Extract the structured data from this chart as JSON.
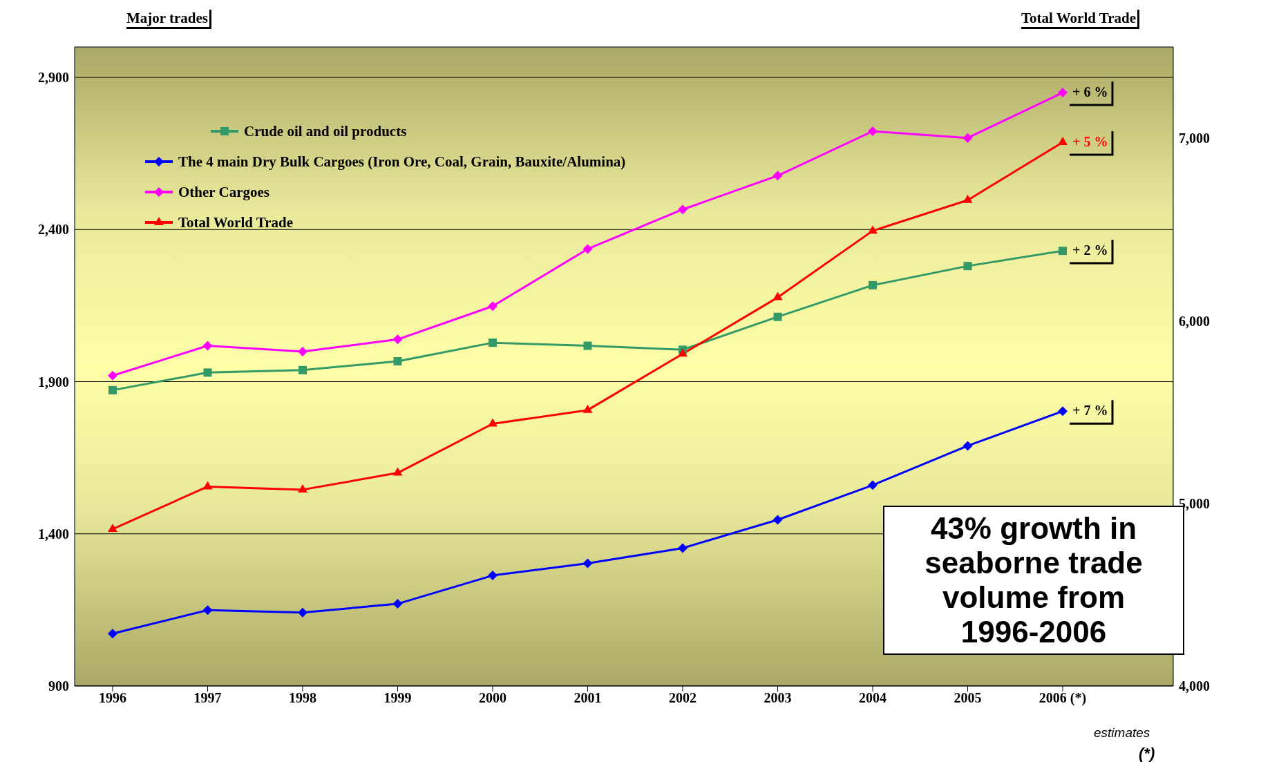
{
  "chart_data": {
    "type": "line",
    "categories": [
      "1996",
      "1997",
      "1998",
      "1999",
      "2000",
      "2001",
      "2002",
      "2003",
      "2004",
      "2005",
      "2006 (*)"
    ],
    "series": [
      {
        "name": "Crude oil and oil products",
        "color": "#339966",
        "marker": "square",
        "values": [
          1872,
          1930,
          1938,
          1967,
          2028,
          2018,
          2005,
          2113,
          2217,
          2280,
          2330
        ]
      },
      {
        "name": "The 4 main Dry Bulk Cargoes (Iron Ore, Coal, Grain, Bauxite/Alumina)",
        "color": "#0000ff",
        "marker": "diamond",
        "values": [
          1072,
          1149,
          1141,
          1170,
          1263,
          1303,
          1353,
          1446,
          1560,
          1689,
          1803
        ]
      },
      {
        "name": "Other Cargoes",
        "color": "#ff00ff",
        "marker": "diamond",
        "values": [
          1920,
          2018,
          1999,
          2039,
          2148,
          2336,
          2466,
          2577,
          2723,
          2701,
          2850
        ]
      },
      {
        "name": "Total World Trade",
        "color": "#ff0000",
        "marker": "triangle",
        "axis": "y2",
        "values": [
          4859,
          5092,
          5075,
          5167,
          5436,
          5511,
          5819,
          6128,
          6493,
          6661,
          6978
        ]
      }
    ],
    "ylim": [
      900,
      3000
    ],
    "yticks": [
      {
        "value": 900,
        "label": "900"
      },
      {
        "value": 1400,
        "label": "1,400"
      },
      {
        "value": 1900,
        "label": "1,900"
      },
      {
        "value": 2400,
        "label": "2,400"
      },
      {
        "value": 2900,
        "label": "2,900"
      }
    ],
    "y2lim": [
      4000,
      7500
    ],
    "y2ticks": [
      {
        "value": 4000,
        "label": "4,000"
      },
      {
        "value": 5000,
        "label": "5,000"
      },
      {
        "value": 6000,
        "label": "6,000"
      },
      {
        "value": 7000,
        "label": "7,000"
      }
    ],
    "grid": "y",
    "legend": "top left",
    "annotations": [
      "43% growth in seaborne trade volume from 1996-2006",
      "estimates",
      "(*)",
      "Major trades",
      "Total World Trade",
      {
        "text": "+ 6 %",
        "x": "2006 (*)",
        "y": 2850
      },
      {
        "text": "+ 2 %",
        "x": "2006 (*)",
        "y": 2330
      },
      {
        "text": "+ 7 %",
        "x": "2006 (*)",
        "y": 1803
      },
      "+ 5 %"
    ]
  }
}
